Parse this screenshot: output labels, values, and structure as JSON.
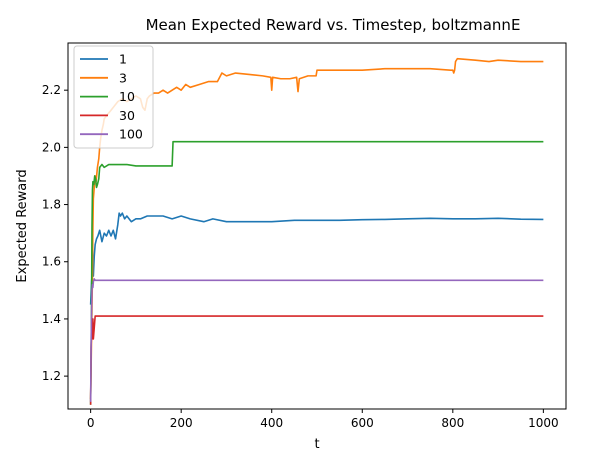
{
  "chart_data": {
    "type": "line",
    "title": "Mean Expected Reward vs. Timestep, boltzmannE",
    "xlabel": "t",
    "ylabel": "Expected Reward",
    "xlim": [
      -50,
      1050
    ],
    "ylim": [
      1.085,
      2.365
    ],
    "xticks": [
      0,
      200,
      400,
      600,
      800,
      1000
    ],
    "yticks": [
      1.2,
      1.4,
      1.6,
      1.8,
      2.0,
      2.2
    ],
    "xtick_labels": [
      "0",
      "200",
      "400",
      "600",
      "800",
      "1000"
    ],
    "ytick_labels": [
      "1.2",
      "1.4",
      "1.6",
      "1.8",
      "2.0",
      "2.2"
    ],
    "grid": false,
    "legend_position": "top-left",
    "series": [
      {
        "name": "1",
        "color": "#1f77b4",
        "points": [
          [
            0,
            1.45
          ],
          [
            2,
            1.53
          ],
          [
            4,
            1.57
          ],
          [
            6,
            1.55
          ],
          [
            8,
            1.62
          ],
          [
            10,
            1.66
          ],
          [
            13,
            1.68
          ],
          [
            16,
            1.69
          ],
          [
            20,
            1.71
          ],
          [
            25,
            1.67
          ],
          [
            30,
            1.7
          ],
          [
            35,
            1.69
          ],
          [
            40,
            1.71
          ],
          [
            45,
            1.69
          ],
          [
            50,
            1.71
          ],
          [
            55,
            1.68
          ],
          [
            60,
            1.73
          ],
          [
            63,
            1.77
          ],
          [
            66,
            1.76
          ],
          [
            70,
            1.77
          ],
          [
            75,
            1.75
          ],
          [
            80,
            1.76
          ],
          [
            90,
            1.74
          ],
          [
            100,
            1.75
          ],
          [
            110,
            1.75
          ],
          [
            125,
            1.76
          ],
          [
            140,
            1.76
          ],
          [
            160,
            1.76
          ],
          [
            180,
            1.75
          ],
          [
            200,
            1.76
          ],
          [
            220,
            1.75
          ],
          [
            250,
            1.74
          ],
          [
            270,
            1.75
          ],
          [
            300,
            1.74
          ],
          [
            350,
            1.74
          ],
          [
            400,
            1.74
          ],
          [
            450,
            1.745
          ],
          [
            500,
            1.745
          ],
          [
            550,
            1.745
          ],
          [
            600,
            1.747
          ],
          [
            650,
            1.748
          ],
          [
            700,
            1.75
          ],
          [
            750,
            1.752
          ],
          [
            800,
            1.75
          ],
          [
            850,
            1.75
          ],
          [
            900,
            1.752
          ],
          [
            950,
            1.749
          ],
          [
            1000,
            1.748
          ]
        ]
      },
      {
        "name": "3",
        "color": "#ff7f0e",
        "points": [
          [
            0,
            1.12
          ],
          [
            2,
            1.33
          ],
          [
            4,
            1.55
          ],
          [
            5,
            1.72
          ],
          [
            6,
            1.82
          ],
          [
            8,
            1.86
          ],
          [
            10,
            1.9
          ],
          [
            12,
            1.88
          ],
          [
            15,
            1.93
          ],
          [
            18,
            1.96
          ],
          [
            20,
            2.0
          ],
          [
            22,
            2.03
          ],
          [
            25,
            2.06
          ],
          [
            28,
            2.08
          ],
          [
            30,
            2.1
          ],
          [
            35,
            2.11
          ],
          [
            40,
            2.12
          ],
          [
            45,
            2.13
          ],
          [
            50,
            2.14
          ],
          [
            55,
            2.15
          ],
          [
            60,
            2.16
          ],
          [
            70,
            2.17
          ],
          [
            80,
            2.16
          ],
          [
            90,
            2.17
          ],
          [
            100,
            2.18
          ],
          [
            110,
            2.17
          ],
          [
            115,
            2.14
          ],
          [
            120,
            2.13
          ],
          [
            125,
            2.17
          ],
          [
            130,
            2.18
          ],
          [
            140,
            2.19
          ],
          [
            150,
            2.19
          ],
          [
            160,
            2.2
          ],
          [
            170,
            2.19
          ],
          [
            180,
            2.2
          ],
          [
            190,
            2.21
          ],
          [
            200,
            2.2
          ],
          [
            210,
            2.22
          ],
          [
            220,
            2.21
          ],
          [
            240,
            2.22
          ],
          [
            260,
            2.23
          ],
          [
            280,
            2.23
          ],
          [
            290,
            2.26
          ],
          [
            300,
            2.25
          ],
          [
            320,
            2.26
          ],
          [
            350,
            2.255
          ],
          [
            380,
            2.25
          ],
          [
            398,
            2.245
          ],
          [
            400,
            2.2
          ],
          [
            402,
            2.245
          ],
          [
            420,
            2.24
          ],
          [
            440,
            2.24
          ],
          [
            455,
            2.245
          ],
          [
            458,
            2.195
          ],
          [
            461,
            2.24
          ],
          [
            480,
            2.25
          ],
          [
            498,
            2.25
          ],
          [
            500,
            2.27
          ],
          [
            550,
            2.27
          ],
          [
            600,
            2.27
          ],
          [
            650,
            2.275
          ],
          [
            700,
            2.275
          ],
          [
            750,
            2.275
          ],
          [
            795,
            2.27
          ],
          [
            800,
            2.27
          ],
          [
            802,
            2.26
          ],
          [
            804,
            2.27
          ],
          [
            806,
            2.3
          ],
          [
            810,
            2.31
          ],
          [
            850,
            2.305
          ],
          [
            880,
            2.3
          ],
          [
            900,
            2.305
          ],
          [
            950,
            2.3
          ],
          [
            1000,
            2.3
          ]
        ]
      },
      {
        "name": "10",
        "color": "#2ca02c",
        "points": [
          [
            0,
            1.1
          ],
          [
            2,
            1.45
          ],
          [
            3,
            1.72
          ],
          [
            4,
            1.85
          ],
          [
            5,
            1.88
          ],
          [
            7,
            1.87
          ],
          [
            9,
            1.9
          ],
          [
            11,
            1.89
          ],
          [
            13,
            1.86
          ],
          [
            15,
            1.87
          ],
          [
            18,
            1.89
          ],
          [
            20,
            1.93
          ],
          [
            25,
            1.94
          ],
          [
            30,
            1.93
          ],
          [
            40,
            1.94
          ],
          [
            60,
            1.94
          ],
          [
            80,
            1.94
          ],
          [
            100,
            1.935
          ],
          [
            120,
            1.935
          ],
          [
            150,
            1.935
          ],
          [
            180,
            1.935
          ],
          [
            182,
            2.02
          ],
          [
            200,
            2.02
          ],
          [
            400,
            2.02
          ],
          [
            600,
            2.02
          ],
          [
            800,
            2.02
          ],
          [
            1000,
            2.02
          ]
        ]
      },
      {
        "name": "30",
        "color": "#d62728",
        "points": [
          [
            0,
            1.1
          ],
          [
            1,
            1.3
          ],
          [
            2,
            1.35
          ],
          [
            3,
            1.33
          ],
          [
            4,
            1.36
          ],
          [
            5,
            1.4
          ],
          [
            6,
            1.33
          ],
          [
            8,
            1.37
          ],
          [
            10,
            1.41
          ],
          [
            100,
            1.41
          ],
          [
            400,
            1.41
          ],
          [
            700,
            1.41
          ],
          [
            1000,
            1.41
          ]
        ]
      },
      {
        "name": "100",
        "color": "#9467bd",
        "points": [
          [
            0,
            1.11
          ],
          [
            1,
            1.3
          ],
          [
            2,
            1.42
          ],
          [
            3,
            1.5
          ],
          [
            4,
            1.52
          ],
          [
            5,
            1.51
          ],
          [
            6,
            1.53
          ],
          [
            8,
            1.54
          ],
          [
            10,
            1.535
          ],
          [
            100,
            1.535
          ],
          [
            400,
            1.535
          ],
          [
            700,
            1.535
          ],
          [
            1000,
            1.535
          ]
        ]
      }
    ]
  }
}
